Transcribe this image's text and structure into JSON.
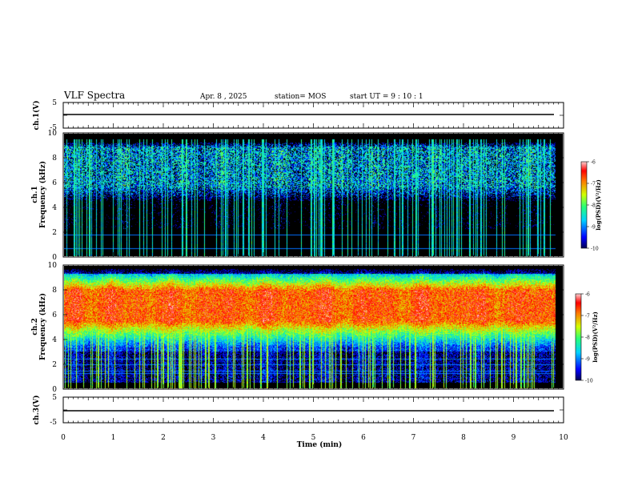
{
  "header": {
    "title": "VLF Spectra",
    "date": "Apr. 8 , 2025",
    "station": "station= MOS",
    "start_ut": "start UT = 9 : 10 : 1"
  },
  "chart_data": {
    "type": "heatmap",
    "x": {
      "label": "Time (min)",
      "range": [
        0,
        10
      ],
      "ticks": [
        0,
        1,
        2,
        3,
        4,
        5,
        6,
        7,
        8,
        9,
        10
      ]
    },
    "panels": [
      {
        "name": "ch.1(V)",
        "kind": "waveform",
        "ylim": [
          -5,
          5
        ],
        "yticks": [
          "-5",
          "5"
        ],
        "value": 0
      },
      {
        "name": "ch.1",
        "kind": "spectrogram",
        "ylabel": "Frequency (kHz)",
        "ylim": [
          0,
          10
        ],
        "yticks": [
          0,
          2,
          4,
          6,
          8,
          10
        ],
        "data_end_min": 9.85,
        "colorbar": {
          "label": "log(PSD)(V²/Hz)",
          "range": [
            -10,
            -6
          ],
          "ticks": [
            "-6",
            "-7",
            "-8",
            "-9",
            "-10"
          ]
        },
        "bands_khz": {
          "background_floor": 0.05,
          "dominant_band": [
            4.5,
            9.3
          ],
          "mean_intensity": -9.0,
          "peak_intensity": -8.2
        },
        "lines_khz": [
          0.6,
          1.7
        ]
      },
      {
        "name": "ch.2",
        "kind": "spectrogram",
        "ylabel": "Frequency (kHz)",
        "ylim": [
          0,
          10
        ],
        "yticks": [
          0,
          2,
          4,
          6,
          8,
          10
        ],
        "data_end_min": 9.85,
        "colorbar": {
          "label": "log(PSD)(V²/Hz)",
          "range": [
            -10,
            -6
          ],
          "ticks": [
            "-6",
            "-7",
            "-8",
            "-9",
            "-10"
          ]
        },
        "bands_khz": {
          "dominant_band": [
            3.0,
            9.8
          ],
          "core_band": [
            5.5,
            8.0
          ],
          "mean_intensity": -7.8,
          "peak_intensity": -6.6
        },
        "lines_khz": [
          1.2,
          1.4,
          1.9,
          2.4
        ]
      },
      {
        "name": "ch.3(V)",
        "kind": "waveform",
        "ylim": [
          -5,
          5
        ],
        "yticks": [
          "-5",
          "5"
        ],
        "value": 0
      }
    ]
  }
}
